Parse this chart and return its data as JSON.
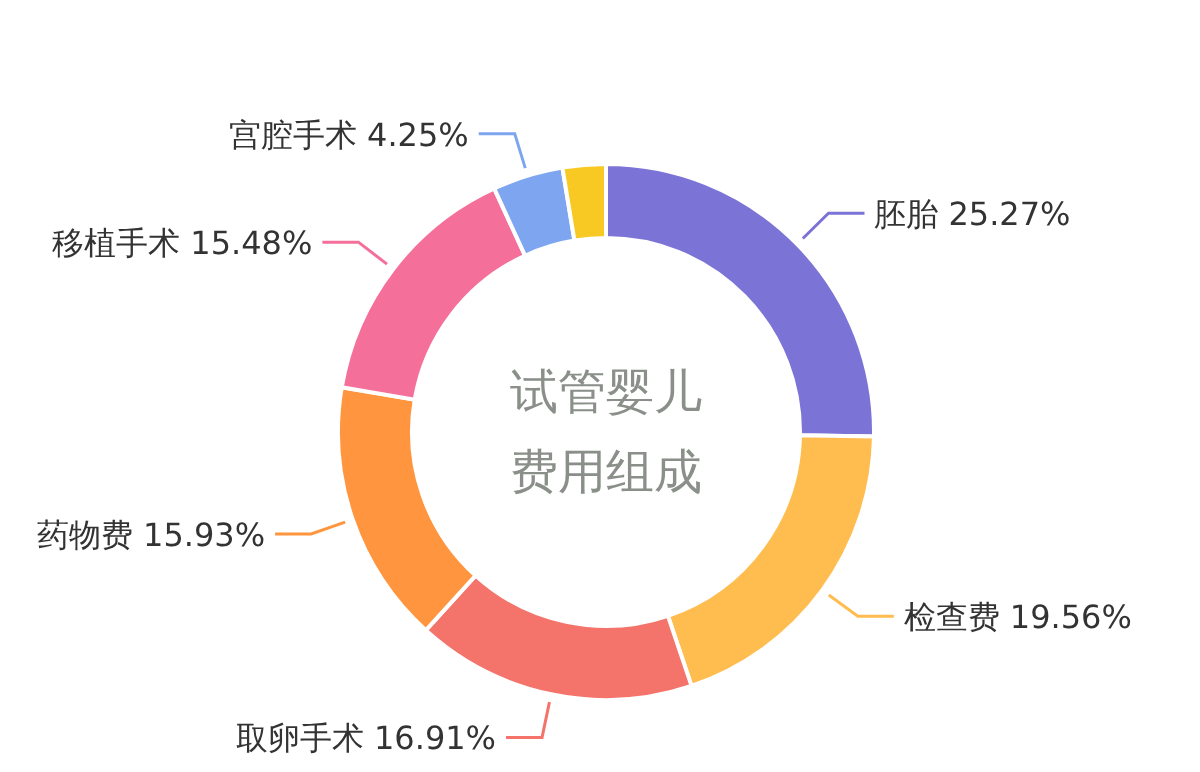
{
  "chart_data": {
    "type": "donut",
    "title": "试管婴儿",
    "subtitle": "费用组成",
    "categories": [
      "胚胎",
      "检查费",
      "取卵手术",
      "药物费",
      "移植手术",
      "宫腔手术",
      null
    ],
    "values": [
      25.27,
      19.56,
      16.91,
      15.93,
      15.48,
      4.25,
      2.6
    ],
    "colors": [
      "#7b74d6",
      "#ffbd4f",
      "#f4736b",
      "#ff963f",
      "#f4709b",
      "#7ea6f0",
      "#f8c823"
    ],
    "value_labels": [
      "25.27%",
      "19.56%",
      "16.91%",
      "15.93%",
      "15.48%",
      "4.25%",
      null
    ]
  }
}
